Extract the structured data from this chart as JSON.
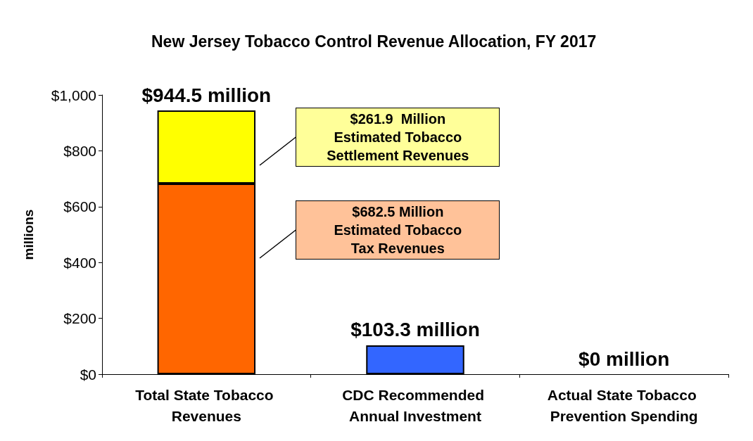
{
  "chart_data": {
    "type": "bar",
    "title": "New Jersey Tobacco Control Revenue Allocation, FY 2017",
    "categories": [
      "Total State Tobacco Revenues",
      "CDC Recommended Annual Investment",
      "Actual State Tobacco Prevention Spending"
    ],
    "stacked": true,
    "series": [
      {
        "colors": [
          "#ff6600",
          "#3366ff",
          "#3366ff"
        ],
        "values": [
          682.5,
          103.3,
          null
        ]
      },
      {
        "color": "#ffff00",
        "values": [
          261.9,
          null,
          null
        ]
      }
    ],
    "totals": [
      "$944.5 million",
      "$103.3 million",
      "$0 million"
    ],
    "annotations": [
      "$261.9  Million\nEstimated Tobacco\nSettlement Revenues",
      "$682.5 Million\nEstimated Tobacco\nTax Revenues"
    ],
    "ylabel": "millions",
    "ylim": [
      0,
      1000
    ],
    "yticks": [
      {
        "value": 0,
        "label": "$0"
      },
      {
        "value": 200,
        "label": "$200"
      },
      {
        "value": 400,
        "label": "$400"
      },
      {
        "value": 600,
        "label": "$600"
      },
      {
        "value": 800,
        "label": "$800"
      },
      {
        "value": 1000,
        "label": "$1,000"
      }
    ],
    "grid": false
  }
}
